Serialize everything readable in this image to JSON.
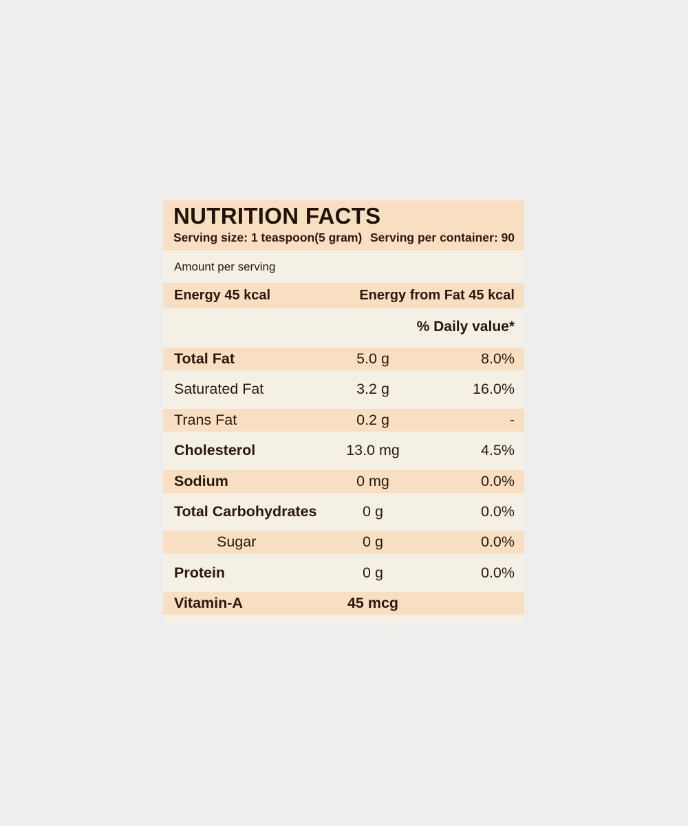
{
  "page": {
    "background_color": "#efeeec"
  },
  "label": {
    "background_color": "#f5f0e6",
    "band_color": "#f9dfc1",
    "text_color": "#2b1710",
    "title": "NUTRITION FACTS",
    "serving_size": "Serving size: 1 teaspoon(5 gram)",
    "serving_per_container": "Serving per container: 90",
    "amount_per_serving": "Amount per serving",
    "energy": "Energy 45 kcal",
    "energy_from_fat": "Energy from Fat 45 kcal",
    "daily_value_header": "% Daily value*",
    "rows": [
      {
        "name": "Total Fat",
        "amount": "5.0 g",
        "daily_value": "8.0%",
        "bold": true,
        "band": true,
        "indent": false,
        "amount_bold": false
      },
      {
        "name": "Saturated Fat",
        "amount": "3.2 g",
        "daily_value": "16.0%",
        "bold": false,
        "band": false,
        "indent": false,
        "amount_bold": false
      },
      {
        "name": "Trans Fat",
        "amount": "0.2 g",
        "daily_value": "-",
        "bold": false,
        "band": true,
        "indent": false,
        "amount_bold": false
      },
      {
        "name": "Cholesterol",
        "amount": "13.0 mg",
        "daily_value": "4.5%",
        "bold": true,
        "band": false,
        "indent": false,
        "amount_bold": false
      },
      {
        "name": "Sodium",
        "amount": "0 mg",
        "daily_value": "0.0%",
        "bold": true,
        "band": true,
        "indent": false,
        "amount_bold": false
      },
      {
        "name": "Total Carbohydrates",
        "amount": "0 g",
        "daily_value": "0.0%",
        "bold": true,
        "band": false,
        "indent": false,
        "amount_bold": false
      },
      {
        "name": "Sugar",
        "amount": "0 g",
        "daily_value": "0.0%",
        "bold": false,
        "band": true,
        "indent": true,
        "amount_bold": false
      },
      {
        "name": "Protein",
        "amount": "0 g",
        "daily_value": "0.0%",
        "bold": true,
        "band": false,
        "indent": false,
        "amount_bold": false
      },
      {
        "name": "Vitamin-A",
        "amount": "45 mcg",
        "daily_value": "",
        "bold": true,
        "band": true,
        "indent": false,
        "amount_bold": true
      }
    ]
  }
}
